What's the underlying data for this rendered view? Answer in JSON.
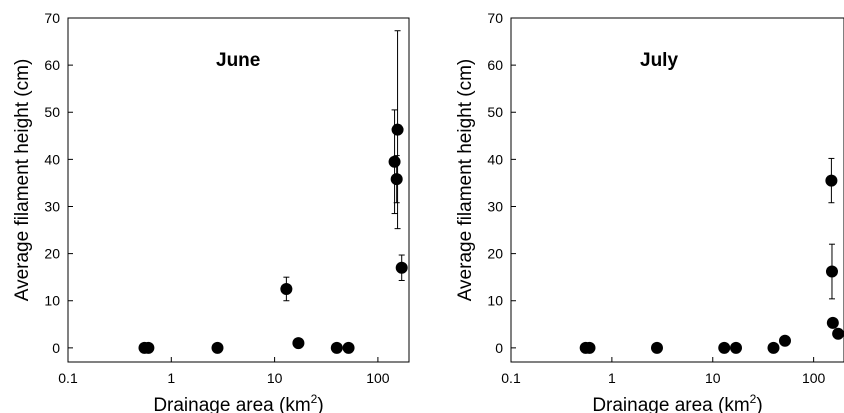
{
  "chart_data": [
    {
      "type": "scatter",
      "title": "June",
      "xlabel": "Drainage area (km",
      "xlabel_sup": "2",
      "xlabel_end": ")",
      "ylabel": "Average filament height (cm)",
      "xscale": "log",
      "xlim": [
        0.1,
        200
      ],
      "ylim": [
        -3,
        70
      ],
      "xticks": [
        {
          "v": 0.1,
          "label": "0.1"
        },
        {
          "v": 1,
          "label": "1"
        },
        {
          "v": 10,
          "label": "10"
        },
        {
          "v": 100,
          "label": "100"
        }
      ],
      "yticks": [
        {
          "v": 0,
          "label": "0"
        },
        {
          "v": 10,
          "label": "10"
        },
        {
          "v": 20,
          "label": "20"
        },
        {
          "v": 30,
          "label": "30"
        },
        {
          "v": 40,
          "label": "40"
        },
        {
          "v": 50,
          "label": "50"
        },
        {
          "v": 60,
          "label": "60"
        },
        {
          "v": 70,
          "label": "70"
        }
      ],
      "points": [
        {
          "x": 0.55,
          "y": 0
        },
        {
          "x": 0.6,
          "y": 0
        },
        {
          "x": 2.8,
          "y": 0
        },
        {
          "x": 13,
          "y": 12.5,
          "err": 2.5
        },
        {
          "x": 17,
          "y": 1
        },
        {
          "x": 40,
          "y": 0
        },
        {
          "x": 52,
          "y": 0
        },
        {
          "x": 145,
          "y": 39.5,
          "err": 11
        },
        {
          "x": 155,
          "y": 46.3,
          "err": 21
        },
        {
          "x": 152,
          "y": 35.8,
          "err": 5
        },
        {
          "x": 170,
          "y": 17,
          "err": 2.7
        }
      ]
    },
    {
      "type": "scatter",
      "title": "July",
      "xlabel": "Drainage area (km",
      "xlabel_sup": "2",
      "xlabel_end": ")",
      "ylabel": "Average filament height (cm)",
      "xscale": "log",
      "xlim": [
        0.1,
        200
      ],
      "ylim": [
        -3,
        70
      ],
      "xticks": [
        {
          "v": 0.1,
          "label": "0.1"
        },
        {
          "v": 1,
          "label": "1"
        },
        {
          "v": 10,
          "label": "10"
        },
        {
          "v": 100,
          "label": "100"
        }
      ],
      "yticks": [
        {
          "v": 0,
          "label": "0"
        },
        {
          "v": 10,
          "label": "10"
        },
        {
          "v": 20,
          "label": "20"
        },
        {
          "v": 30,
          "label": "30"
        },
        {
          "v": 40,
          "label": "40"
        },
        {
          "v": 50,
          "label": "50"
        },
        {
          "v": 60,
          "label": "60"
        },
        {
          "v": 70,
          "label": "70"
        }
      ],
      "points": [
        {
          "x": 0.55,
          "y": 0
        },
        {
          "x": 0.6,
          "y": 0
        },
        {
          "x": 2.8,
          "y": 0
        },
        {
          "x": 13,
          "y": 0
        },
        {
          "x": 17,
          "y": 0
        },
        {
          "x": 40,
          "y": 0
        },
        {
          "x": 52,
          "y": 1.5
        },
        {
          "x": 150,
          "y": 35.5,
          "err": 4.7
        },
        {
          "x": 152,
          "y": 16.2,
          "err": 5.8
        },
        {
          "x": 155,
          "y": 5.3,
          "err": 0.6
        },
        {
          "x": 175,
          "y": 3
        }
      ]
    }
  ]
}
